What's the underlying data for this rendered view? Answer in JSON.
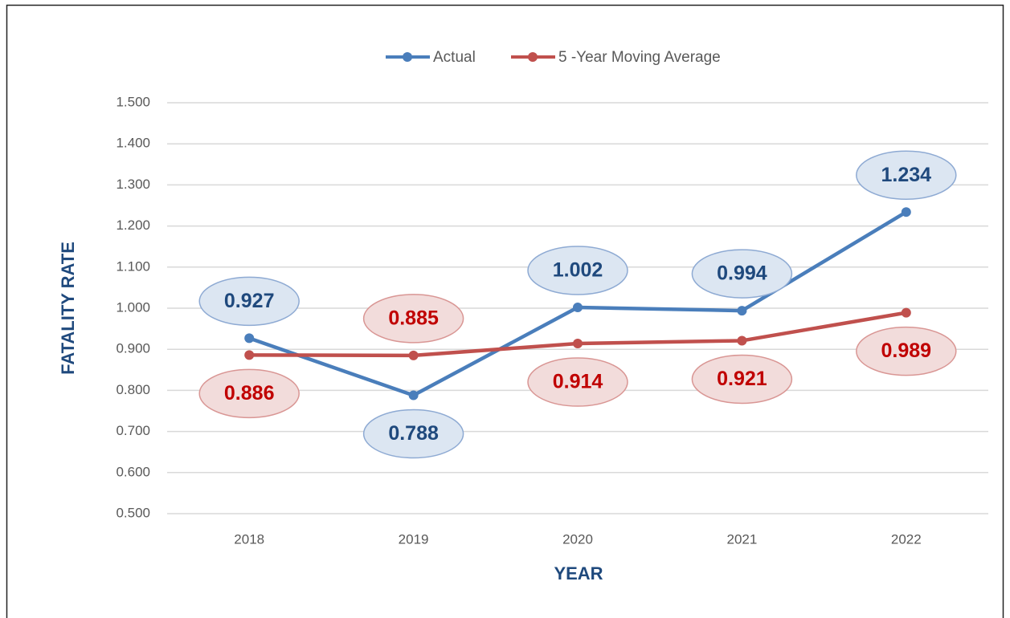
{
  "chart_data": {
    "type": "line",
    "categories": [
      "2018",
      "2019",
      "2020",
      "2021",
      "2022"
    ],
    "series": [
      {
        "name": "Actual",
        "color": "#4a7ebb",
        "values": [
          0.927,
          0.788,
          1.002,
          0.994,
          1.234
        ]
      },
      {
        "name": "5 -Year Moving Average",
        "color": "#c0504d",
        "values": [
          0.886,
          0.885,
          0.914,
          0.921,
          0.989
        ]
      }
    ],
    "xlabel": "YEAR",
    "ylabel": "FATALITY RATE",
    "ylim": [
      0.5,
      1.5
    ],
    "yticks": [
      {
        "value": 0.5,
        "label": "0.500"
      },
      {
        "value": 0.6,
        "label": "0.600"
      },
      {
        "value": 0.7,
        "label": "0.700"
      },
      {
        "value": 0.8,
        "label": "0.800"
      },
      {
        "value": 0.9,
        "label": "0.900"
      },
      {
        "value": 1.0,
        "label": "1.000"
      },
      {
        "value": 1.1,
        "label": "1.100"
      },
      {
        "value": 1.2,
        "label": "1.200"
      },
      {
        "value": 1.3,
        "label": "1.300"
      },
      {
        "value": 1.4,
        "label": "1.400"
      },
      {
        "value": 1.5,
        "label": "1.500"
      }
    ],
    "grid": true,
    "legend": "top"
  }
}
